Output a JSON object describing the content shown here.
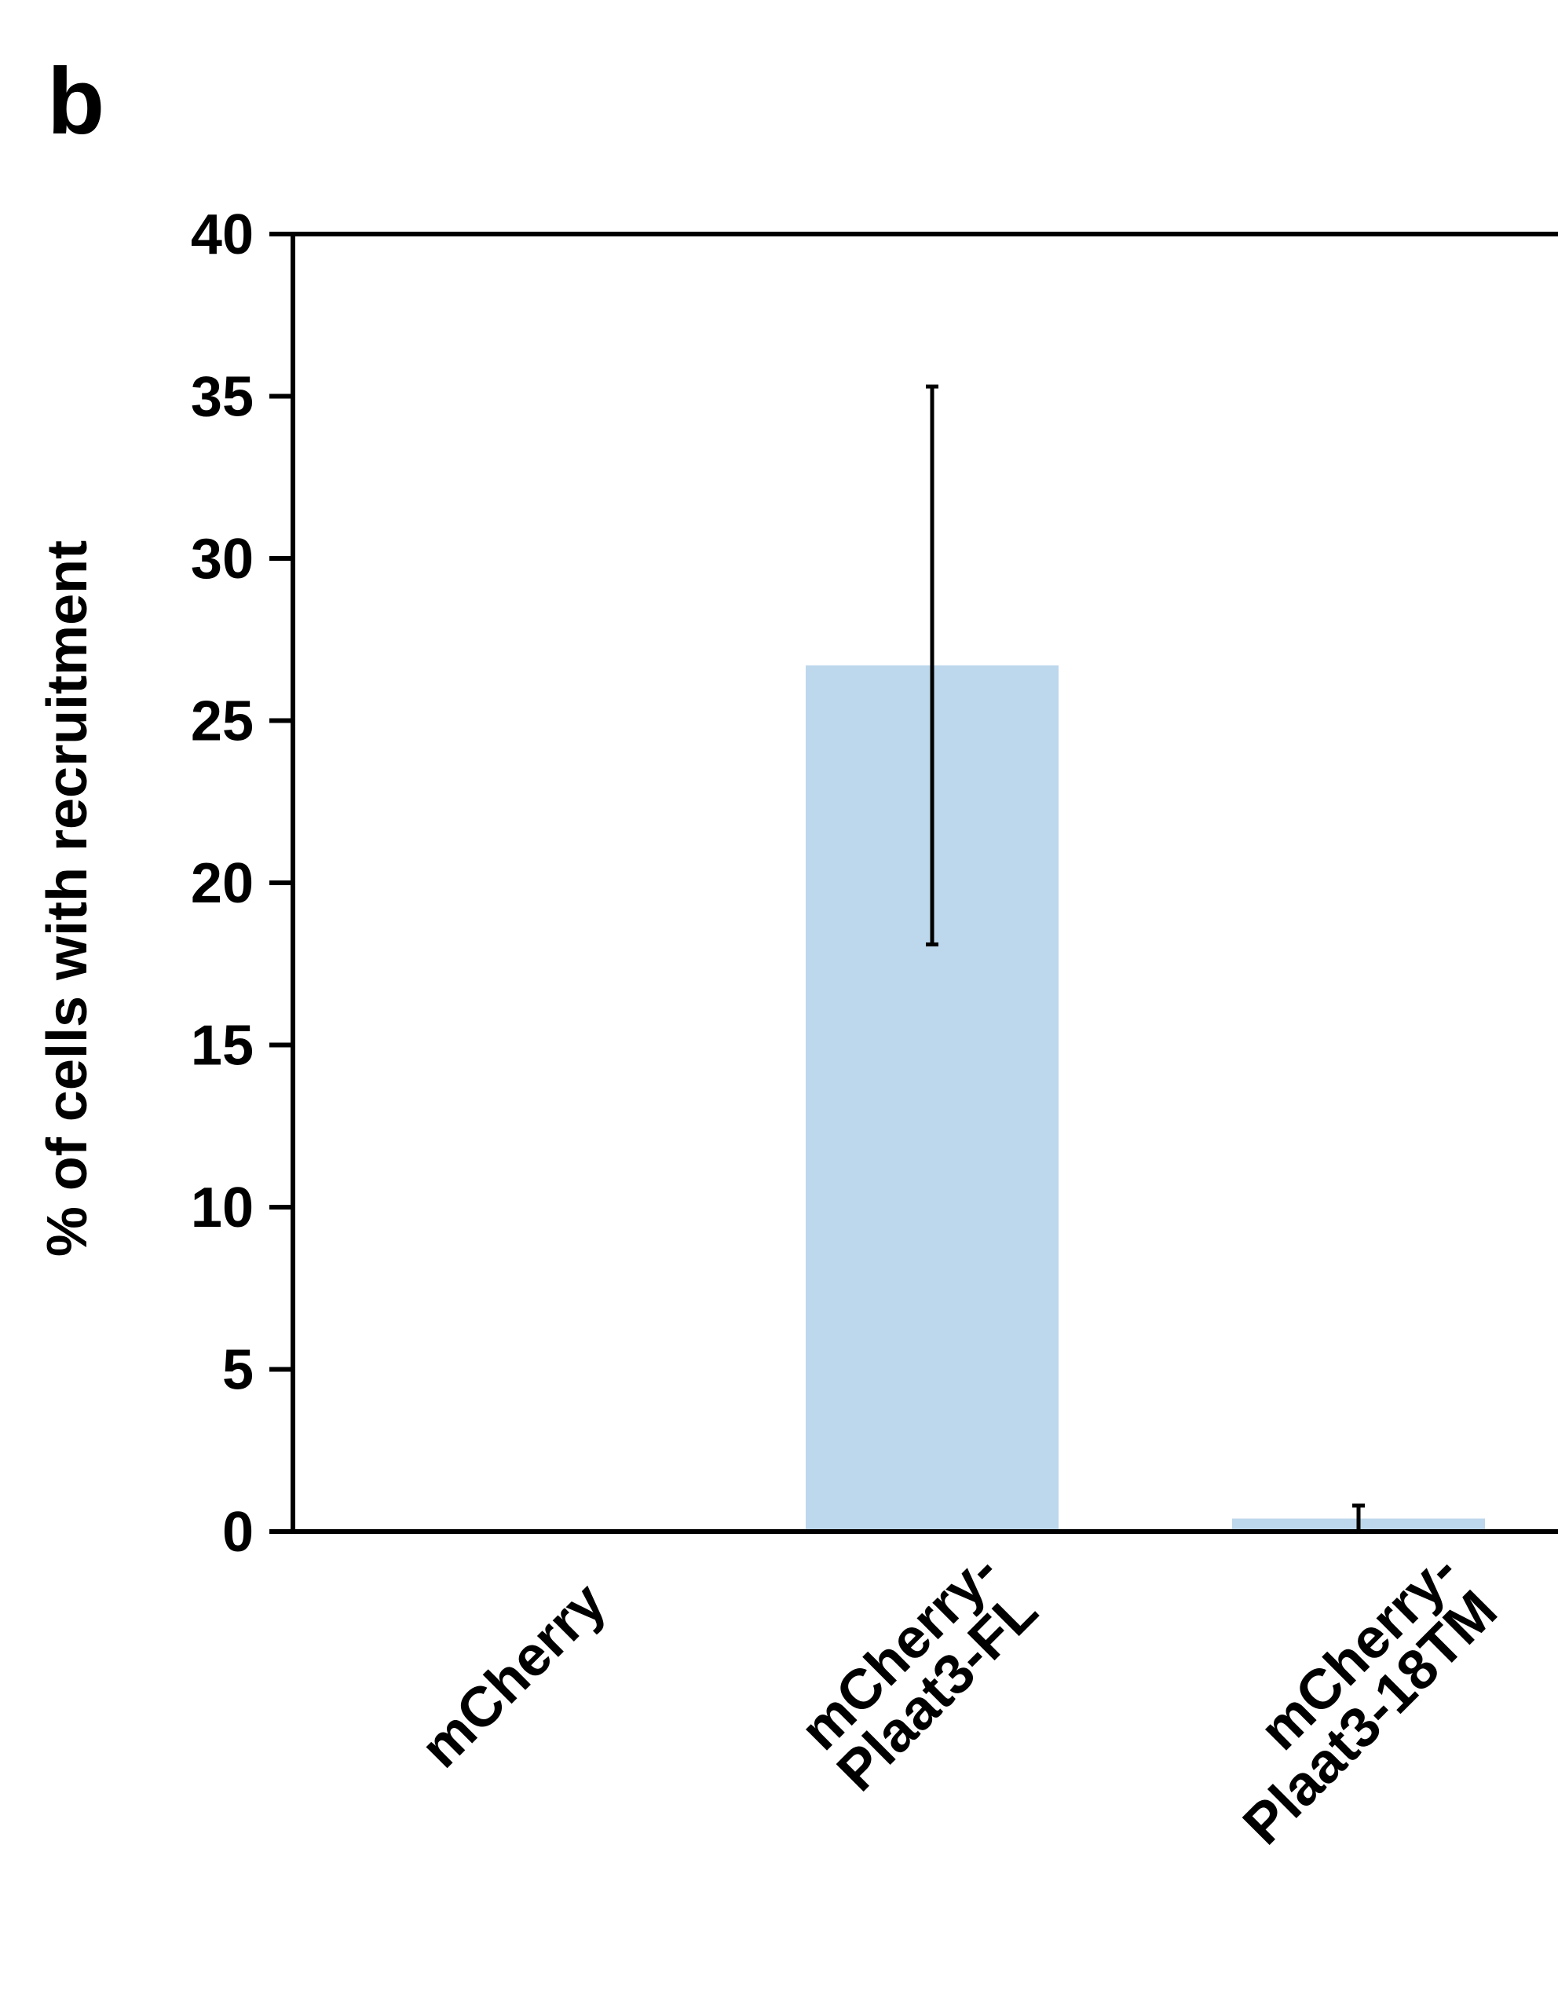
{
  "panel_label": "b",
  "chart_data": {
    "type": "bar",
    "categories": [
      [
        "mCherry"
      ],
      [
        "mCherry-",
        "Plaat3-FL"
      ],
      [
        "mCherry-",
        "Plaat3-18TM"
      ]
    ],
    "values": [
      0,
      26.7,
      0.4
    ],
    "errors": [
      0,
      8.6,
      0.4
    ],
    "ylabel": "% of cells with recruitment",
    "xlabel": "",
    "ylim": [
      0,
      40
    ],
    "yticks": [
      0,
      5,
      10,
      15,
      20,
      25,
      30,
      35,
      40
    ],
    "bar_color": "#bdd7ec",
    "grid": false
  }
}
